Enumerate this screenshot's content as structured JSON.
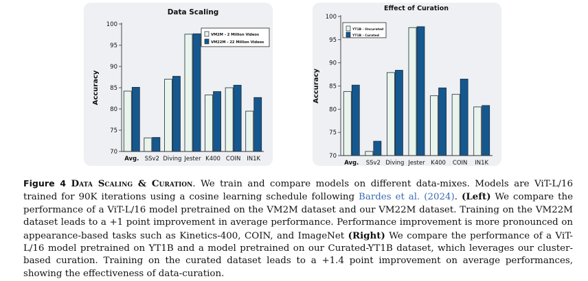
{
  "chart_data": [
    {
      "type": "bar",
      "title": "Data Scaling",
      "ylabel": "Accuracy",
      "xlabel": "",
      "ylim": [
        70,
        100
      ],
      "yticks": [
        70,
        75,
        80,
        85,
        90,
        95,
        100
      ],
      "legend_position": "top-right",
      "categories": [
        "Avg.",
        "SSv2",
        "Diving",
        "Jester",
        "K400",
        "COIN",
        "IN1K"
      ],
      "series": [
        {
          "name": "VM2M - 2 Million Videos",
          "color": "#e8f4ec",
          "values": [
            84.2,
            73.2,
            87.0,
            97.6,
            83.3,
            85.0,
            79.5
          ]
        },
        {
          "name": "VM22M - 22 Million Videos",
          "color": "#15588f",
          "values": [
            85.1,
            73.3,
            87.7,
            97.7,
            84.1,
            85.6,
            82.7
          ]
        }
      ]
    },
    {
      "type": "bar",
      "title": "Effect of Curation",
      "ylabel": "Accuracy",
      "xlabel": "",
      "ylim": [
        70,
        100
      ],
      "yticks": [
        70,
        75,
        80,
        85,
        90,
        95,
        100
      ],
      "legend_position": "top-left",
      "categories": [
        "Avg.",
        "SSv2",
        "Diving",
        "Jester",
        "K400",
        "COIN",
        "IN1K"
      ],
      "series": [
        {
          "name": "YT1B - Uncurated",
          "color": "#e8f4ec",
          "values": [
            83.8,
            70.9,
            87.9,
            97.6,
            82.9,
            83.2,
            80.5
          ]
        },
        {
          "name": "YT1B - Curated",
          "color": "#15588f",
          "values": [
            85.2,
            73.1,
            88.4,
            97.8,
            84.6,
            86.5,
            80.8
          ]
        }
      ]
    }
  ],
  "caption": {
    "figure_label": "Figure 4",
    "title": "Data Scaling & Curation",
    "text_1": ". We train and compare models on different data-mixes. Models are ViT-L/16 trained for 90K iterations using a cosine learning schedule following ",
    "citation": "Bardes et al. (2024)",
    "text_2": ". ",
    "left_label": "(Left)",
    "text_3": " We compare the performance of a ViT-L/16 model pretrained on the VM2M dataset and our VM22M dataset. Training on the VM22M dataset leads to a +1 point improvement in average performance. Performance improvement is more pronounced on appearance-based tasks such as Kinetics-400, COIN, and ImageNet ",
    "right_label": "(Right)",
    "text_4": " We compare the performance of a ViT-L/16 model pretrained on YT1B and a model pretrained on our Curated-YT1B dataset, which leverages our cluster-based curation. Training on the curated dataset leads to a +1.4 point improvement on average performances, showing the effectiveness of data-curation."
  }
}
